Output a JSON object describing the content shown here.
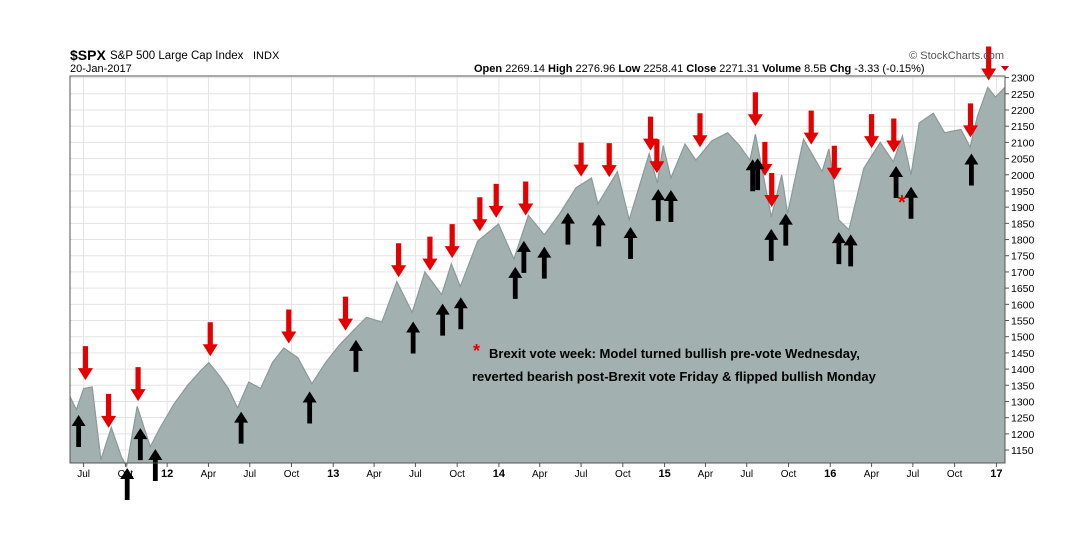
{
  "header": {
    "symbol": "$SPX",
    "name": "S&P 500 Large Cap Index",
    "exchange": "INDX",
    "date": "20-Jan-2017",
    "brand": "© StockCharts.com",
    "ohlc": {
      "open_label": "Open",
      "open": "2269.14",
      "high_label": "High",
      "high": "2276.96",
      "low_label": "Low",
      "low": "2258.41",
      "close_label": "Close",
      "close": "2271.31",
      "volume_label": "Volume",
      "volume": "8.5B",
      "chg_label": "Chg",
      "chg": "-3.33 (-0.15%)"
    }
  },
  "annotation": {
    "star": "*",
    "line1": "Brexit vote week: Model turned bullish pre-vote Wednesday,",
    "line2": "reverted bearish post-Brexit vote Friday & flipped bullish Monday"
  },
  "colors": {
    "area_fill": "#a3b0b0",
    "area_line": "#8a9999",
    "sell_arrow": "#e50000",
    "buy_arrow": "#000000",
    "grid": "#e3e3e3"
  },
  "chart_data": {
    "type": "area",
    "title": "S&P 500 Large Cap Index",
    "x_start": "2011-06",
    "x_end": "2017-01-20",
    "x_tick_labels": [
      "Jul",
      "Oct",
      "12",
      "Apr",
      "Jul",
      "Oct",
      "13",
      "Apr",
      "Jul",
      "Oct",
      "14",
      "Apr",
      "Jul",
      "Oct",
      "15",
      "Apr",
      "Jul",
      "Oct",
      "16",
      "Apr",
      "Jul",
      "Oct",
      "17"
    ],
    "x_tick_dates": [
      "2011-07",
      "2011-10",
      "2012-01",
      "2012-04",
      "2012-07",
      "2012-10",
      "2013-01",
      "2013-04",
      "2013-07",
      "2013-10",
      "2014-01",
      "2014-04",
      "2014-07",
      "2014-10",
      "2015-01",
      "2015-04",
      "2015-07",
      "2015-10",
      "2016-01",
      "2016-04",
      "2016-07",
      "2016-10",
      "2017-01"
    ],
    "y_ticks": [
      1150,
      1200,
      1250,
      1300,
      1350,
      1400,
      1450,
      1500,
      1550,
      1600,
      1650,
      1700,
      1750,
      1800,
      1850,
      1900,
      1950,
      2000,
      2050,
      2100,
      2150,
      2200,
      2250,
      2300
    ],
    "ylim": [
      1110,
      2305
    ],
    "y_axis_side": "right",
    "grid": true,
    "series": [
      {
        "points": [
          [
            "2011-06-01",
            1315
          ],
          [
            "2011-06-15",
            1275
          ],
          [
            "2011-07-01",
            1340
          ],
          [
            "2011-07-20",
            1345
          ],
          [
            "2011-08-08",
            1120
          ],
          [
            "2011-08-31",
            1220
          ],
          [
            "2011-09-22",
            1130
          ],
          [
            "2011-10-04",
            1100
          ],
          [
            "2011-10-27",
            1285
          ],
          [
            "2011-11-25",
            1160
          ],
          [
            "2011-12-15",
            1215
          ],
          [
            "2012-01-15",
            1290
          ],
          [
            "2012-02-15",
            1350
          ],
          [
            "2012-03-15",
            1395
          ],
          [
            "2012-04-02",
            1420
          ],
          [
            "2012-04-25",
            1380
          ],
          [
            "2012-05-15",
            1340
          ],
          [
            "2012-06-04",
            1280
          ],
          [
            "2012-06-29",
            1360
          ],
          [
            "2012-07-25",
            1340
          ],
          [
            "2012-08-20",
            1420
          ],
          [
            "2012-09-14",
            1465
          ],
          [
            "2012-10-15",
            1435
          ],
          [
            "2012-11-15",
            1355
          ],
          [
            "2012-12-15",
            1420
          ],
          [
            "2013-01-15",
            1475
          ],
          [
            "2013-02-15",
            1520
          ],
          [
            "2013-03-15",
            1560
          ],
          [
            "2013-04-18",
            1545
          ],
          [
            "2013-05-21",
            1670
          ],
          [
            "2013-06-24",
            1575
          ],
          [
            "2013-07-22",
            1700
          ],
          [
            "2013-08-28",
            1630
          ],
          [
            "2013-09-18",
            1725
          ],
          [
            "2013-10-08",
            1655
          ],
          [
            "2013-11-15",
            1795
          ],
          [
            "2013-12-31",
            1848
          ],
          [
            "2014-02-03",
            1740
          ],
          [
            "2014-03-07",
            1875
          ],
          [
            "2014-04-11",
            1815
          ],
          [
            "2014-05-15",
            1880
          ],
          [
            "2014-06-20",
            1960
          ],
          [
            "2014-07-24",
            1990
          ],
          [
            "2014-08-07",
            1910
          ],
          [
            "2014-09-19",
            2010
          ],
          [
            "2014-10-15",
            1862
          ],
          [
            "2014-11-28",
            2065
          ],
          [
            "2014-12-16",
            1975
          ],
          [
            "2014-12-29",
            2090
          ],
          [
            "2015-01-15",
            1990
          ],
          [
            "2015-02-15",
            2095
          ],
          [
            "2015-03-11",
            2045
          ],
          [
            "2015-04-15",
            2105
          ],
          [
            "2015-05-20",
            2130
          ],
          [
            "2015-06-15",
            2090
          ],
          [
            "2015-07-08",
            2045
          ],
          [
            "2015-07-20",
            2125
          ],
          [
            "2015-08-24",
            1870
          ],
          [
            "2015-09-16",
            2000
          ],
          [
            "2015-09-29",
            1880
          ],
          [
            "2015-11-03",
            2110
          ],
          [
            "2015-12-14",
            2010
          ],
          [
            "2015-12-29",
            2080
          ],
          [
            "2016-01-20",
            1860
          ],
          [
            "2016-02-11",
            1830
          ],
          [
            "2016-03-15",
            2020
          ],
          [
            "2016-04-20",
            2100
          ],
          [
            "2016-05-19",
            2040
          ],
          [
            "2016-06-08",
            2120
          ],
          [
            "2016-06-27",
            2000
          ],
          [
            "2016-07-15",
            2160
          ],
          [
            "2016-08-15",
            2190
          ],
          [
            "2016-09-09",
            2130
          ],
          [
            "2016-10-15",
            2140
          ],
          [
            "2016-11-04",
            2085
          ],
          [
            "2016-11-20",
            2180
          ],
          [
            "2016-12-13",
            2270
          ],
          [
            "2016-12-30",
            2240
          ],
          [
            "2017-01-20",
            2270
          ]
        ]
      }
    ],
    "sell_signals": [
      "2011-07-05",
      "2011-08-25",
      "2011-10-29",
      "2012-04-05",
      "2012-09-25",
      "2013-01-28",
      "2013-05-25",
      "2013-08-02",
      "2013-09-20",
      "2013-11-20",
      "2013-12-26",
      "2014-03-01",
      "2014-07-01",
      "2014-09-01",
      "2014-12-01",
      "2014-12-15",
      "2015-03-20",
      "2015-07-20",
      "2015-08-10",
      "2015-08-25",
      "2015-11-20",
      "2016-01-10",
      "2016-04-01",
      "2016-05-20",
      "2016-11-05",
      "2016-12-15"
    ],
    "buy_signals": [
      "2011-06-20",
      "2011-10-05",
      "2011-11-03",
      "2011-12-06",
      "2012-06-12",
      "2012-11-10",
      "2013-02-20",
      "2013-06-26",
      "2013-08-30",
      "2013-10-09",
      "2014-02-06",
      "2014-02-25",
      "2014-04-11",
      "2014-06-02",
      "2014-08-09",
      "2014-10-18",
      "2014-12-18",
      "2015-01-15",
      "2015-07-14",
      "2015-07-25",
      "2015-08-24",
      "2015-09-25",
      "2016-01-20",
      "2016-02-15",
      "2016-05-25",
      "2016-06-27",
      "2016-11-07"
    ]
  }
}
